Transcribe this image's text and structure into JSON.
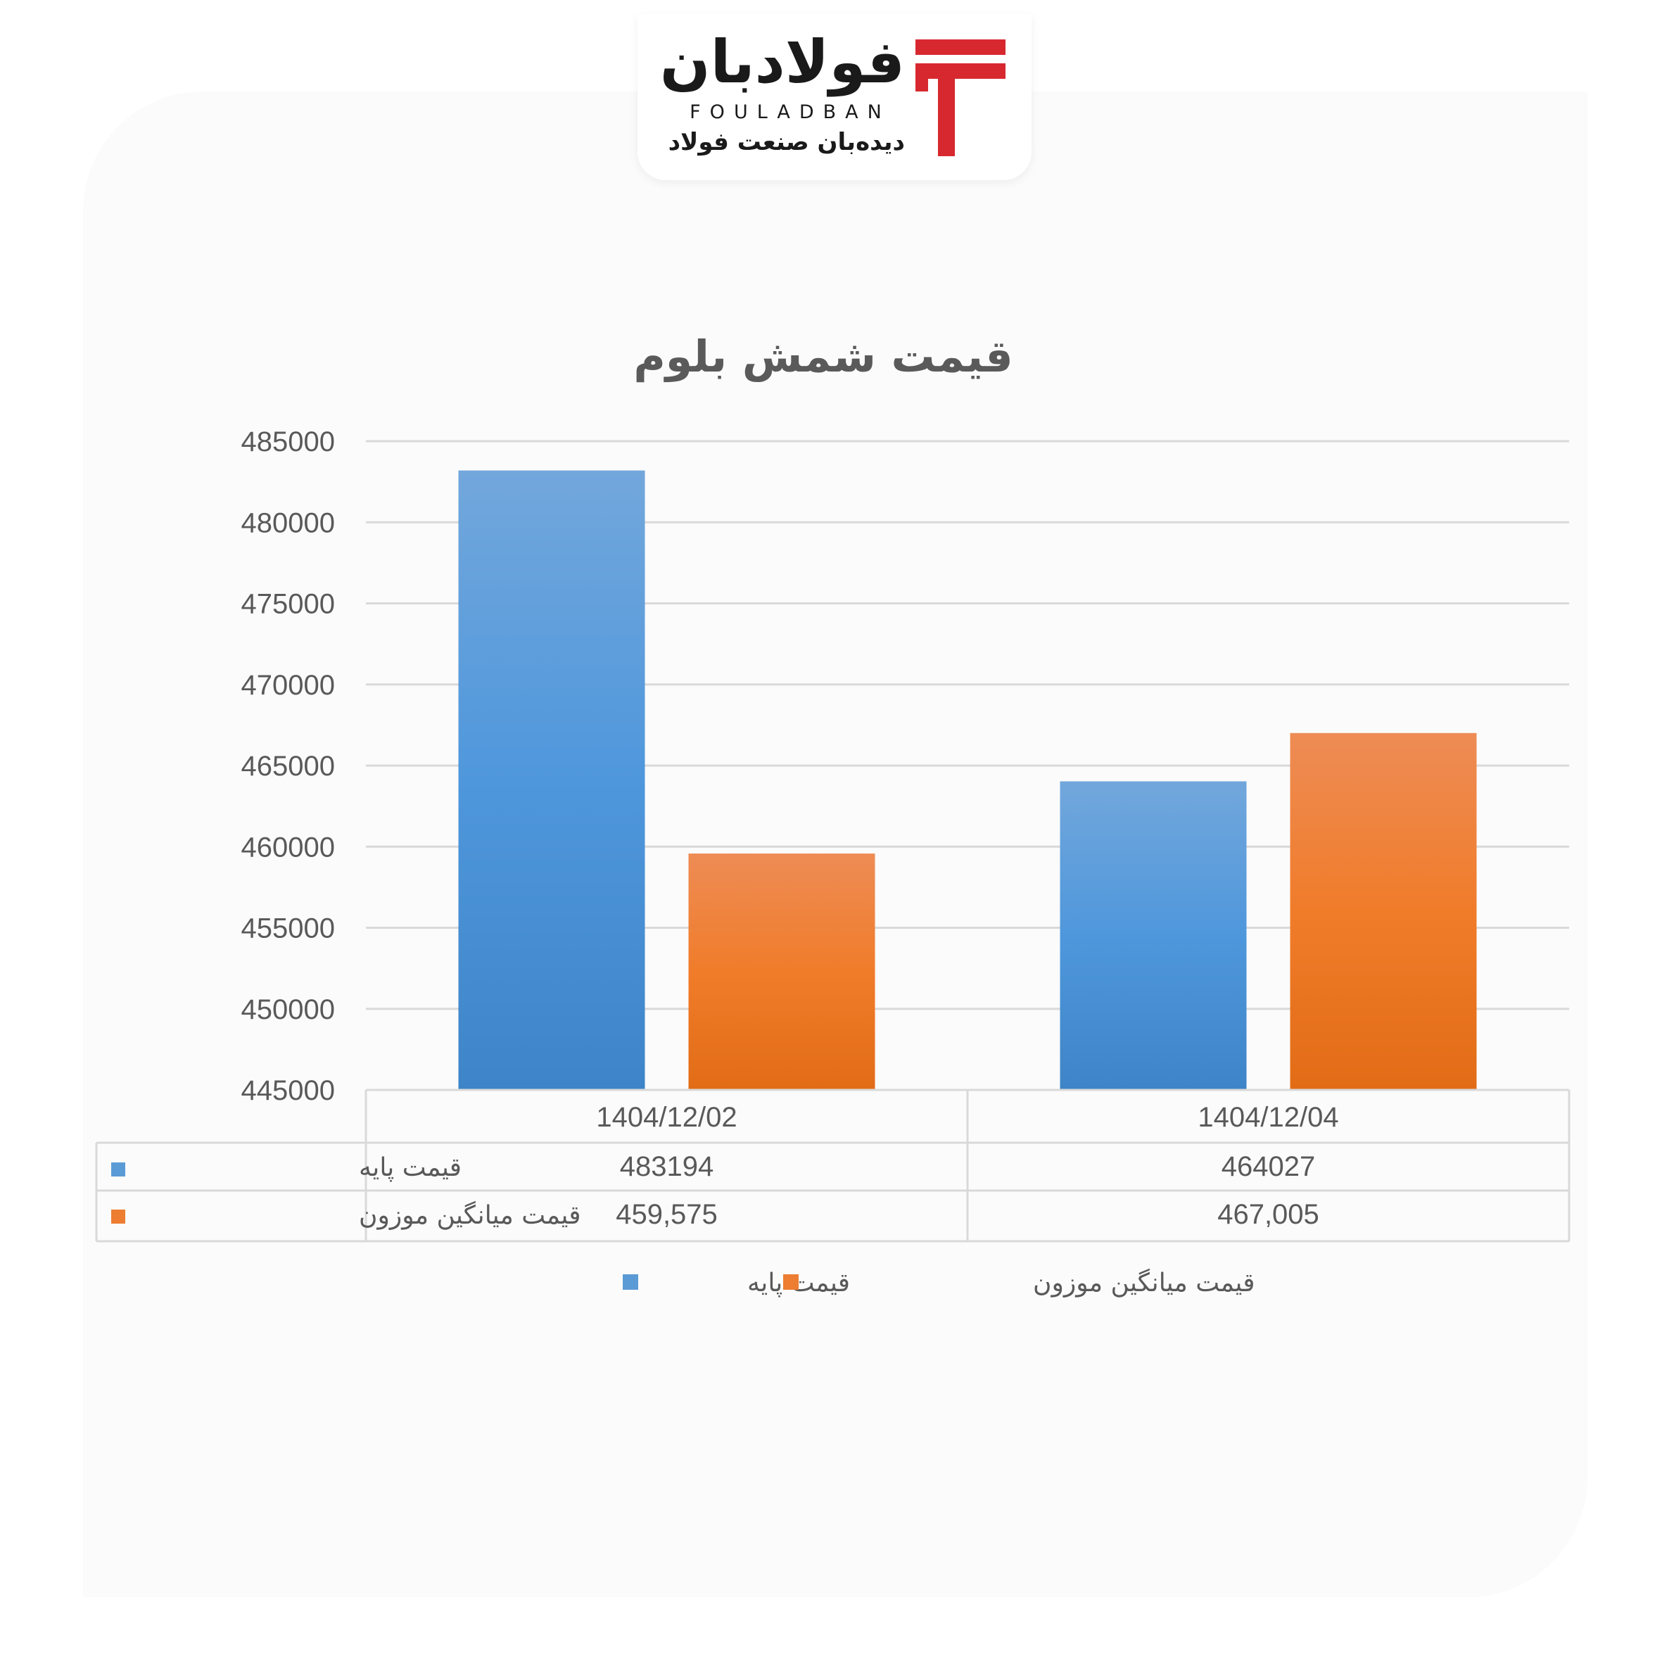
{
  "logo": {
    "name_fa": "فولادبان",
    "name_en": "FOULADBAN",
    "tagline": "دیده‌بان صنعت فولاد",
    "icon": "fouladban-f-mark-icon",
    "brand_color": "#d7282f"
  },
  "chart_data": {
    "type": "bar",
    "title": "قیمت شمش بلوم",
    "categories": [
      "1404/12/02",
      "1404/12/04"
    ],
    "series": [
      {
        "name": "قیمت پایه",
        "values": [
          483194,
          464027
        ],
        "labels": [
          "483194",
          "464027"
        ],
        "color": "#5b9bd5"
      },
      {
        "name": "قیمت میانگین موزون",
        "values": [
          459575,
          467005
        ],
        "labels": [
          "459,575",
          "467,005"
        ],
        "color": "#ed7d31"
      }
    ],
    "ylim": [
      445000,
      485000
    ],
    "yticks": [
      485000,
      480000,
      475000,
      470000,
      465000,
      460000,
      455000,
      450000,
      445000
    ],
    "grid": true,
    "legend": "bottom",
    "data_table": true
  }
}
